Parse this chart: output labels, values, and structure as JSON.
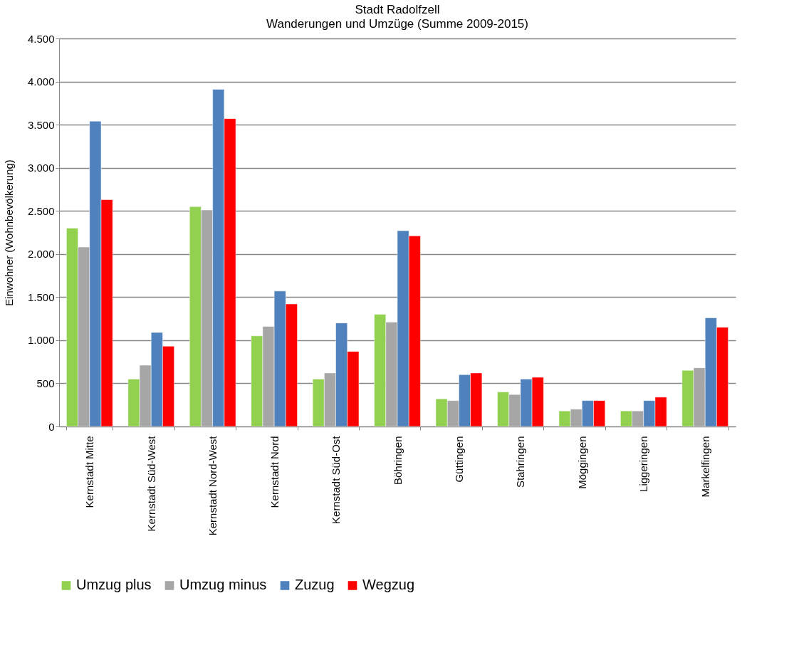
{
  "chart_data": {
    "type": "bar",
    "title": "Stadt Radolfzell",
    "subtitle": "Wanderungen und Umzüge (Summe 2009-2015)",
    "ylabel": "Einwohner (Wohnbevölkerung)",
    "categories": [
      "Kernstadt Mitte",
      "Kernstadt Süd-West",
      "Kernstadt Nord-West",
      "Kernstadt Nord",
      "Kernstadt Süd-Ost",
      "Böhringen",
      "Güttingen",
      "Stahringen",
      "Möggingen",
      "Liggeringen",
      "Markelfingen"
    ],
    "series": [
      {
        "name": "Umzug plus",
        "color": "#92d050",
        "values": [
          2300,
          550,
          2550,
          1050,
          550,
          1300,
          320,
          400,
          180,
          180,
          650
        ]
      },
      {
        "name": "Umzug minus",
        "color": "#a6a6a6",
        "values": [
          2080,
          710,
          2510,
          1160,
          620,
          1210,
          300,
          370,
          200,
          180,
          680
        ]
      },
      {
        "name": "Zuzug",
        "color": "#4f81bd",
        "values": [
          3540,
          1090,
          3910,
          1570,
          1200,
          2270,
          600,
          550,
          300,
          300,
          1260
        ]
      },
      {
        "name": "Wegzug",
        "color": "#ff0000",
        "values": [
          2630,
          930,
          3570,
          1420,
          870,
          2210,
          620,
          570,
          300,
          340,
          1150
        ]
      }
    ],
    "ylim": [
      0,
      4500
    ],
    "yticks": [
      0,
      500,
      {
        "value": 1000,
        "label": "1.000"
      },
      {
        "value": 1500,
        "label": "1.500"
      },
      {
        "value": 2000,
        "label": "2.000"
      },
      {
        "value": 2500,
        "label": "2.500"
      },
      {
        "value": 3000,
        "label": "3.000"
      },
      {
        "value": 3500,
        "label": "3.500"
      },
      {
        "value": 4000,
        "label": "4.000"
      },
      {
        "value": 4500,
        "label": "4.500"
      }
    ],
    "grid": "y",
    "legend": "bottom"
  }
}
